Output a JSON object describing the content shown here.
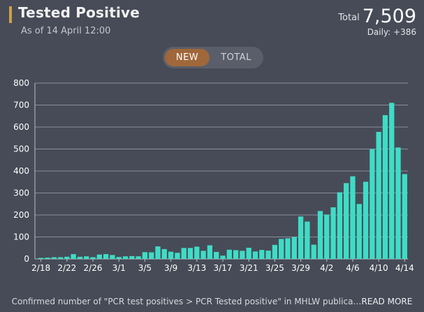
{
  "header": {
    "title": "Tested Positive",
    "subtitle": "As of 14 April 12:00",
    "total_label": "Total",
    "total_value": "7,509",
    "daily": "Daily: +386"
  },
  "toggle": {
    "new_label": "NEW",
    "total_label": "TOTAL",
    "selected": "NEW"
  },
  "colors": {
    "bar": "#3fdcc6",
    "accent": "#c9a24b",
    "active_button": "#a0683a",
    "background": "#474b57"
  },
  "footer": {
    "note": "Confirmed number of \"PCR test positives > PCR Tested positive\" in MHLW publica…",
    "read_more": "READ MORE"
  },
  "chart_data": {
    "type": "bar",
    "x_tick_labels": [
      "2/18",
      "2/22",
      "2/26",
      "3/1",
      "3/5",
      "3/9",
      "3/13",
      "3/17",
      "3/21",
      "3/25",
      "3/29",
      "4/2",
      "4/6",
      "4/10",
      "4/14"
    ],
    "ylim": [
      0,
      800
    ],
    "y_ticks": [
      0,
      100,
      200,
      300,
      400,
      500,
      600,
      700,
      800
    ],
    "grid": true,
    "categories": [
      "2/18",
      "2/19",
      "2/20",
      "2/21",
      "2/22",
      "2/23",
      "2/24",
      "2/25",
      "2/26",
      "2/27",
      "2/28",
      "2/29",
      "3/1",
      "3/2",
      "3/3",
      "3/4",
      "3/5",
      "3/6",
      "3/7",
      "3/8",
      "3/9",
      "3/10",
      "3/11",
      "3/12",
      "3/13",
      "3/14",
      "3/15",
      "3/16",
      "3/17",
      "3/18",
      "3/19",
      "3/20",
      "3/21",
      "3/22",
      "3/23",
      "3/24",
      "3/25",
      "3/26",
      "3/27",
      "3/28",
      "3/29",
      "3/30",
      "3/31",
      "4/1",
      "4/2",
      "4/3",
      "4/4",
      "4/5",
      "4/6",
      "4/7",
      "4/8",
      "4/9",
      "4/10",
      "4/11",
      "4/12",
      "4/13",
      "4/14"
    ],
    "values": [
      5,
      6,
      8,
      8,
      10,
      22,
      10,
      12,
      8,
      20,
      22,
      18,
      9,
      12,
      13,
      12,
      31,
      30,
      57,
      45,
      33,
      28,
      50,
      50,
      56,
      37,
      62,
      32,
      15,
      42,
      40,
      37,
      51,
      34,
      41,
      38,
      64,
      91,
      94,
      100,
      193,
      170,
      65,
      218,
      202,
      235,
      303,
      345,
      376,
      250,
      351,
      500,
      578,
      654,
      710,
      507,
      386
    ]
  }
}
